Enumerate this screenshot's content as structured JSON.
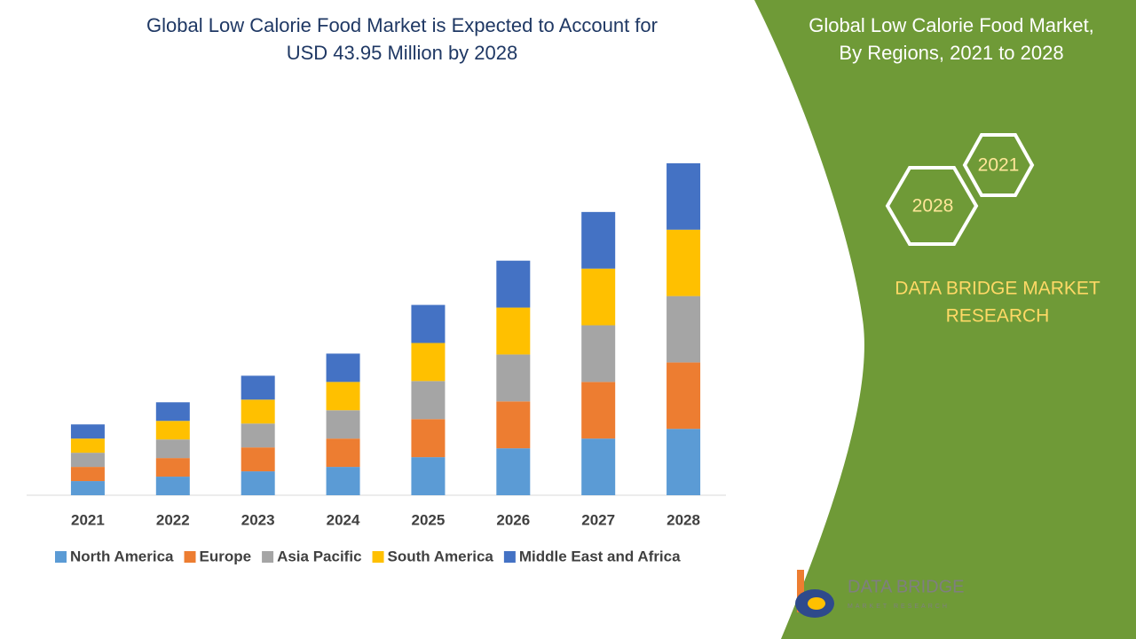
{
  "chart_data": {
    "type": "stacked-bar",
    "title": [
      "Global Low Calorie Food Market is Expected to Account for",
      "USD 43.95 Million by 2028"
    ],
    "categories": [
      "2021",
      "2022",
      "2023",
      "2024",
      "2025",
      "2026",
      "2027",
      "2028"
    ],
    "series": [
      {
        "name": "North America",
        "color": "#5b9bd5",
        "values": [
          16,
          21,
          27,
          32,
          43,
          53,
          64,
          75
        ]
      },
      {
        "name": "Europe",
        "color": "#ed7d31",
        "values": [
          16,
          21,
          27,
          32,
          43,
          53,
          64,
          75
        ]
      },
      {
        "name": "Asia Pacific",
        "color": "#a5a5a5",
        "values": [
          16,
          21,
          27,
          32,
          43,
          53,
          64,
          75
        ]
      },
      {
        "name": "South America",
        "color": "#ffc000",
        "values": [
          16,
          21,
          27,
          32,
          43,
          53,
          64,
          75
        ]
      },
      {
        "name": "Middle East and Africa",
        "color": "#4472c4",
        "values": [
          16,
          21,
          27,
          32,
          43,
          53,
          64,
          75
        ]
      }
    ],
    "legend": "bottom"
  },
  "panel": {
    "title": [
      "Global Low Calorie Food Market,",
      "By Regions, 2021 to 2028"
    ],
    "hexagons": [
      "2021",
      "2028"
    ],
    "brand": [
      "DATA BRIDGE MARKET",
      "RESEARCH"
    ]
  },
  "logo": {
    "name": "DATA BRIDGE",
    "tagline": "MARKET RESEARCH"
  }
}
